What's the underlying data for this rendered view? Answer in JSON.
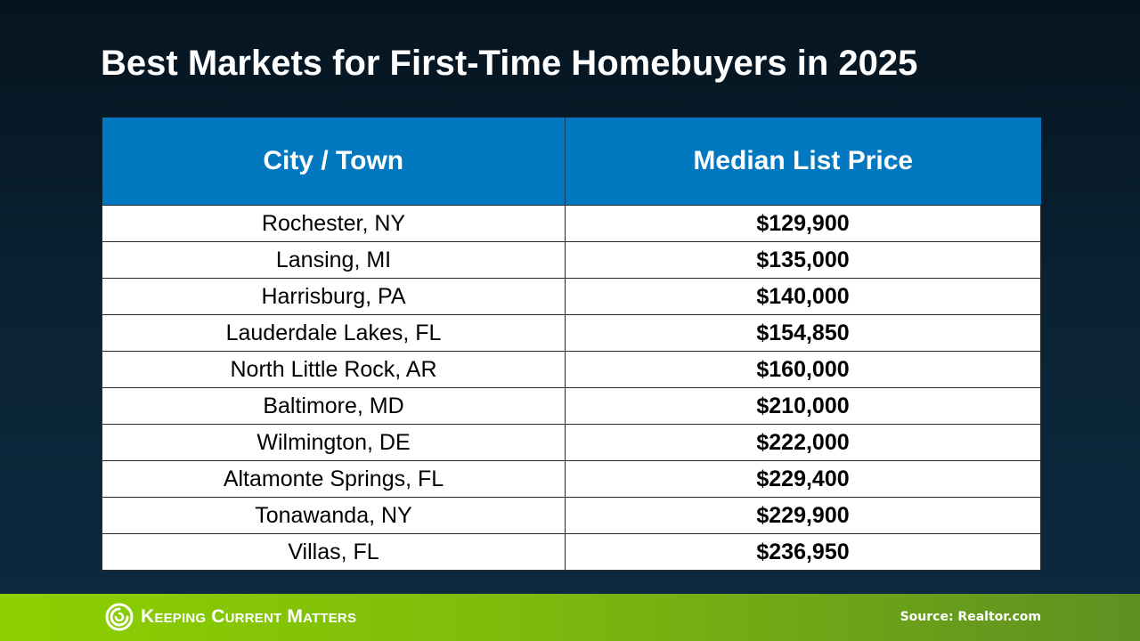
{
  "title": "Best Markets for First-Time Homebuyers in 2025",
  "table": {
    "headers": [
      "City / Town",
      "Median List Price"
    ],
    "rows": [
      {
        "city": "Rochester, NY",
        "price": "$129,900"
      },
      {
        "city": "Lansing, MI",
        "price": "$135,000"
      },
      {
        "city": "Harrisburg, PA",
        "price": "$140,000"
      },
      {
        "city": "Lauderdale Lakes, FL",
        "price": "$154,850"
      },
      {
        "city": "North Little Rock, AR",
        "price": "$160,000"
      },
      {
        "city": "Baltimore, MD",
        "price": "$210,000"
      },
      {
        "city": "Wilmington, DE",
        "price": "$222,000"
      },
      {
        "city": "Altamonte Springs, FL",
        "price": "$229,400"
      },
      {
        "city": "Tonawanda, NY",
        "price": "$229,900"
      },
      {
        "city": "Villas, FL",
        "price": "$236,950"
      }
    ]
  },
  "footer": {
    "logo_text": "Keeping Current Matters",
    "logo_icon": "kcm-swirl-logo",
    "source": "Source: Realtor.com"
  },
  "colors": {
    "background": "#0a2233",
    "header_blue": "#0178c0",
    "footer_green": "#7dbb0c"
  }
}
